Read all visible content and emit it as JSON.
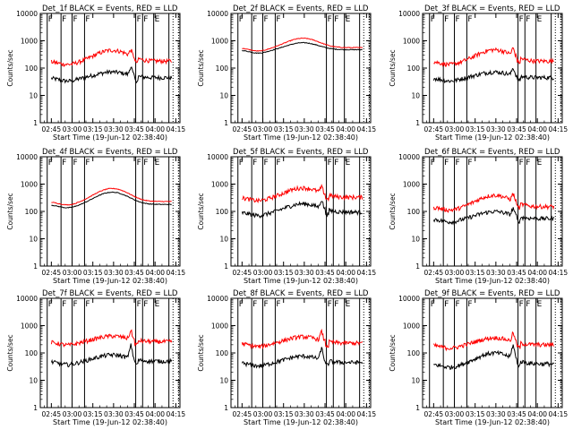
{
  "chart_data": {
    "type": "line",
    "grid": false,
    "shared": {
      "ylabel": "Counts/sec",
      "xlabel": "Start Time (19-Jun-12 02:38:40)",
      "y_scale": "log",
      "ylim": [
        1,
        10000
      ],
      "y_ticks": [
        1,
        10,
        100,
        1000,
        10000
      ],
      "y_tick_labels": [
        "1",
        "10",
        "100",
        "1000",
        "10000"
      ],
      "xlim_minutes": [
        -2,
        99
      ],
      "x_ticks_minutes": [
        6,
        21,
        36,
        51,
        66,
        81,
        96
      ],
      "x_tick_labels": [
        "02:45",
        "03:00",
        "03:15",
        "03:30",
        "03:45",
        "04:00",
        "04:15"
      ],
      "solid_markers_minutes": [
        3,
        13,
        21,
        30,
        67,
        72,
        80,
        91
      ],
      "dotted_markers_minutes": [
        94,
        98
      ],
      "flag_labels": [
        "F",
        "F",
        "F",
        "F",
        "F",
        "F",
        "E"
      ],
      "flag_positions_minutes": [
        3,
        13,
        21,
        30,
        67,
        72,
        80
      ]
    },
    "panels": [
      {
        "title": "Det_1f BLACK = Events, RED = LLD",
        "series": [
          {
            "color": "#000000",
            "base": 45,
            "amp": 1.6,
            "spike": 2.0
          },
          {
            "color": "#ff0000",
            "base": 180,
            "amp": 2.5,
            "spike": 1.6
          }
        ]
      },
      {
        "title": "Det_2f BLACK = Events, RED = LLD",
        "series": [
          {
            "color": "#000000",
            "base": 470,
            "amp": 1.8,
            "spike": 1.0
          },
          {
            "color": "#ff0000",
            "base": 560,
            "amp": 2.2,
            "spike": 1.0
          }
        ]
      },
      {
        "title": "Det_3f BLACK = Events, RED = LLD",
        "series": [
          {
            "color": "#000000",
            "base": 45,
            "amp": 1.6,
            "spike": 1.8
          },
          {
            "color": "#ff0000",
            "base": 180,
            "amp": 2.6,
            "spike": 1.8
          }
        ]
      },
      {
        "title": "Det_4f BLACK = Events, RED = LLD",
        "series": [
          {
            "color": "#000000",
            "base": 180,
            "amp": 2.8,
            "spike": 1.0
          },
          {
            "color": "#ff0000",
            "base": 230,
            "amp": 3.0,
            "spike": 1.0
          }
        ]
      },
      {
        "title": "Det_5f BLACK = Events, RED = LLD",
        "series": [
          {
            "color": "#000000",
            "base": 95,
            "amp": 2.0,
            "spike": 2.0
          },
          {
            "color": "#ff0000",
            "base": 330,
            "amp": 2.2,
            "spike": 1.6
          }
        ]
      },
      {
        "title": "Det_6f BLACK = Events, RED = LLD",
        "series": [
          {
            "color": "#000000",
            "base": 55,
            "amp": 1.8,
            "spike": 1.8
          },
          {
            "color": "#ff0000",
            "base": 150,
            "amp": 2.6,
            "spike": 1.8
          }
        ]
      },
      {
        "title": "Det_7f BLACK = Events, RED = LLD",
        "series": [
          {
            "color": "#000000",
            "base": 50,
            "amp": 1.7,
            "spike": 3.0
          },
          {
            "color": "#ff0000",
            "base": 260,
            "amp": 1.6,
            "spike": 2.0
          }
        ]
      },
      {
        "title": "Det_8f BLACK = Events, RED = LLD",
        "series": [
          {
            "color": "#000000",
            "base": 45,
            "amp": 1.7,
            "spike": 2.5
          },
          {
            "color": "#ff0000",
            "base": 230,
            "amp": 1.7,
            "spike": 2.0
          }
        ]
      },
      {
        "title": "Det_9f BLACK = Events, RED = LLD",
        "series": [
          {
            "color": "#000000",
            "base": 40,
            "amp": 2.5,
            "spike": 3.0
          },
          {
            "color": "#ff0000",
            "base": 200,
            "amp": 1.8,
            "spike": 2.0
          }
        ]
      }
    ]
  }
}
